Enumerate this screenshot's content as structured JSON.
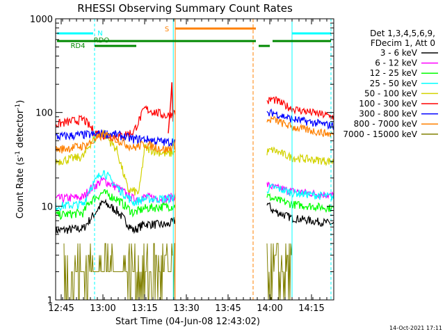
{
  "chart_data": {
    "type": "line",
    "title": "RHESSI Observing Summary Count Rates",
    "xlabel": "Start Time (04-Jun-08 12:43:02)",
    "ylabel": "Count Rate (s",
    "ylabel_sup": "-1",
    "ylabel_mid": " detector",
    "ylabel_end": ")",
    "y_scale": "log",
    "ylim": [
      1,
      1000
    ],
    "xlim_minutes": [
      0,
      100
    ],
    "x_ticks": [
      {
        "t": 2,
        "label": "12:45"
      },
      {
        "t": 17,
        "label": "13:00"
      },
      {
        "t": 32,
        "label": "13:15"
      },
      {
        "t": 47,
        "label": "13:30"
      },
      {
        "t": 62,
        "label": "13:45"
      },
      {
        "t": 77,
        "label": "14:00"
      },
      {
        "t": 92,
        "label": "14:15"
      }
    ],
    "y_ticks": [
      {
        "v": 1,
        "label": "1"
      },
      {
        "v": 10,
        "label": "10"
      },
      {
        "v": 100,
        "label": "100"
      },
      {
        "v": 1000,
        "label": "1000"
      }
    ],
    "legend_header": [
      "Det 1,3,4,5,6,9,",
      "FDecim 1, Att 0"
    ],
    "legend_position": "right",
    "timestamp": "14-Oct-2021 17:11",
    "series": [
      {
        "name": "3 - 6 keV",
        "color": "#000000"
      },
      {
        "name": "6 - 12 keV",
        "color": "#ff00ff"
      },
      {
        "name": "12 - 25 keV",
        "color": "#00ff00"
      },
      {
        "name": "25 - 50 keV",
        "color": "#00ffff"
      },
      {
        "name": "50 - 100 keV",
        "color": "#d2d200"
      },
      {
        "name": "100 - 300 keV",
        "color": "#ff0000"
      },
      {
        "name": "300 - 800 keV",
        "color": "#0000ff"
      },
      {
        "name": "800 - 7000 keV",
        "color": "#ff8000"
      },
      {
        "name": "7000 - 15000 keV",
        "color": "#808000"
      }
    ],
    "flags": [
      {
        "label": "N",
        "color": "#00ffff"
      },
      {
        "label": "RDO",
        "color": "#008800"
      },
      {
        "label": "RD4",
        "color": "#008800"
      },
      {
        "label": "S",
        "color": "#ff8000"
      }
    ]
  }
}
